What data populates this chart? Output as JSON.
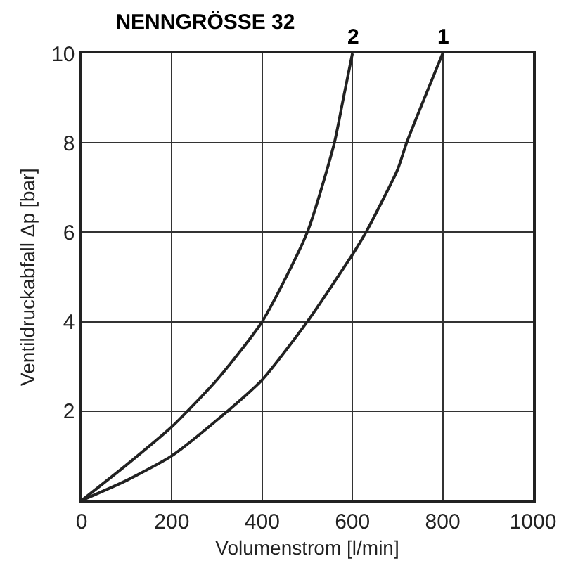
{
  "chart_data": {
    "type": "line",
    "title": "NENNGRÖSSE 32",
    "xlabel": "Volumenstrom [l/min]",
    "ylabel": "Ventildruckabfall Δp [bar]",
    "series": [
      {
        "name": "1",
        "color": "#222222",
        "x": [
          0,
          100,
          200,
          300,
          400,
          500,
          600,
          630,
          700,
          720,
          800
        ],
        "values": [
          0,
          0.45,
          1.0,
          1.8,
          2.7,
          4.0,
          5.5,
          6.0,
          7.4,
          8.0,
          10
        ]
      },
      {
        "name": "2",
        "color": "#222222",
        "x": [
          0,
          100,
          200,
          300,
          400,
          500,
          560,
          580,
          600
        ],
        "values": [
          0,
          0.8,
          1.65,
          2.7,
          4.0,
          6.0,
          8.0,
          9.0,
          10
        ]
      }
    ],
    "xlim": [
      0,
      1000
    ],
    "xticks": [
      0,
      200,
      400,
      600,
      800,
      1000
    ],
    "ylim": [
      0,
      10
    ],
    "yticks": [
      2,
      4,
      6,
      8,
      10
    ],
    "grid": true,
    "legend": false,
    "marker": "none",
    "line_style": "solid"
  }
}
